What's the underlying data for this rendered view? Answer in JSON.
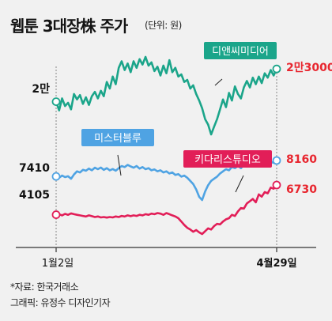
{
  "header": {
    "title": "웹툰 3대장株 주가",
    "unit": "(단위: 원)"
  },
  "footer": {
    "source": "*자료: 한국거래소",
    "credit": "그래픽: 유정수 디자인기자"
  },
  "chart_data": {
    "type": "line",
    "x_labels": [
      "1월2일",
      "4월29일"
    ],
    "series": [
      {
        "name": "디앤씨미디어",
        "color": "#1ba58a",
        "label_bg": "#1ba58a",
        "start_label": "2만",
        "end_label": "2만3000",
        "end_label_color": "#e8262f",
        "start_value": 20000,
        "end_value": 23000,
        "values": [
          20000,
          19200,
          20300,
          19600,
          19900,
          19300,
          20700,
          20200,
          20600,
          19800,
          20400,
          19700,
          20500,
          20900,
          20300,
          21000,
          20500,
          21800,
          21200,
          22300,
          21600,
          23100,
          23700,
          22900,
          23500,
          22700,
          23700,
          23100,
          23900,
          23400,
          24100,
          23300,
          23600,
          22800,
          23200,
          22400,
          23300,
          22600,
          23800,
          22700,
          23100,
          22300,
          22500,
          21800,
          22000,
          21200,
          21500,
          20700,
          20100,
          19400,
          18400,
          17900,
          17000,
          17700,
          18400,
          19300,
          20200,
          19500,
          20800,
          20100,
          21400,
          20700,
          20300,
          21300,
          21900,
          21300,
          22200,
          21600,
          22300,
          21700,
          22600,
          22200,
          22900,
          22400,
          23000
        ]
      },
      {
        "name": "미스터블루",
        "color": "#4fa3e3",
        "label_bg": "#4fa3e3",
        "start_label": "7410",
        "end_label": "8160",
        "end_label_color": "#e8262f",
        "start_value": 7410,
        "end_value": 8160,
        "values": [
          7410,
          7350,
          7450,
          7380,
          7420,
          7300,
          7500,
          7650,
          7600,
          7720,
          7680,
          7780,
          7700,
          7820,
          7750,
          7830,
          7720,
          7800,
          7700,
          7760,
          7680,
          7800,
          7900,
          7850,
          7950,
          7880,
          7820,
          7900,
          7780,
          7850,
          7750,
          7800,
          7700,
          7740,
          7650,
          7700,
          7600,
          7650,
          7550,
          7600,
          7480,
          7520,
          7400,
          7450,
          7350,
          7200,
          7050,
          6800,
          6450,
          6300,
          6700,
          7000,
          7200,
          7300,
          7400,
          7550,
          7650,
          7750,
          7700,
          7850,
          7800,
          7900,
          7800,
          7950,
          7870,
          7900,
          7950,
          7880,
          8000,
          7950,
          8050,
          8000,
          8100,
          8050,
          8160
        ]
      },
      {
        "name": "키다리스튜디오",
        "color": "#e21e58",
        "label_bg": "#e21e58",
        "start_label": "4105",
        "end_label": "6730",
        "end_label_color": "#e8262f",
        "start_value": 4105,
        "end_value": 6730,
        "values": [
          4105,
          4150,
          4050,
          4180,
          4100,
          4220,
          4150,
          4100,
          4050,
          4000,
          3950,
          4050,
          3980,
          3900,
          3950,
          3870,
          3900,
          3850,
          3900,
          3870,
          3950,
          3900,
          4000,
          3950,
          4050,
          3980,
          4050,
          4000,
          4100,
          4050,
          4150,
          4100,
          4200,
          4150,
          4250,
          4200,
          4100,
          4250,
          4150,
          4050,
          3950,
          3800,
          3500,
          3200,
          2950,
          2800,
          2600,
          2750,
          2550,
          2400,
          2650,
          2900,
          2800,
          3100,
          3300,
          3250,
          3500,
          3700,
          3800,
          4100,
          4000,
          4400,
          4700,
          4650,
          5100,
          5300,
          5500,
          5200,
          5900,
          5700,
          6100,
          6000,
          6500,
          6400,
          6730
        ]
      }
    ]
  }
}
